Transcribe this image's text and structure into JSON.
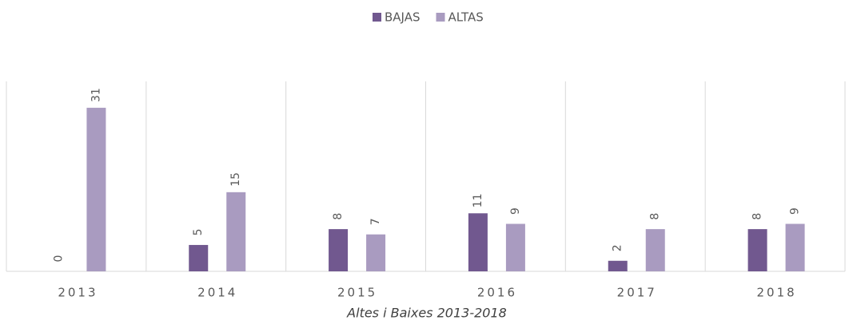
{
  "chart_data": {
    "type": "bar",
    "categories": [
      "2013",
      "2014",
      "2015",
      "2016",
      "2017",
      "2018"
    ],
    "series": [
      {
        "name": "BAJAS",
        "color": "#71588f",
        "values": [
          0,
          5,
          8,
          11,
          2,
          8
        ]
      },
      {
        "name": "ALTAS",
        "color": "#a99bc0",
        "values": [
          31,
          15,
          7,
          9,
          8,
          9
        ]
      }
    ],
    "x_label": "Altes i Baixes 2013-2018",
    "ylim": [
      0,
      36
    ],
    "legend": "top"
  }
}
